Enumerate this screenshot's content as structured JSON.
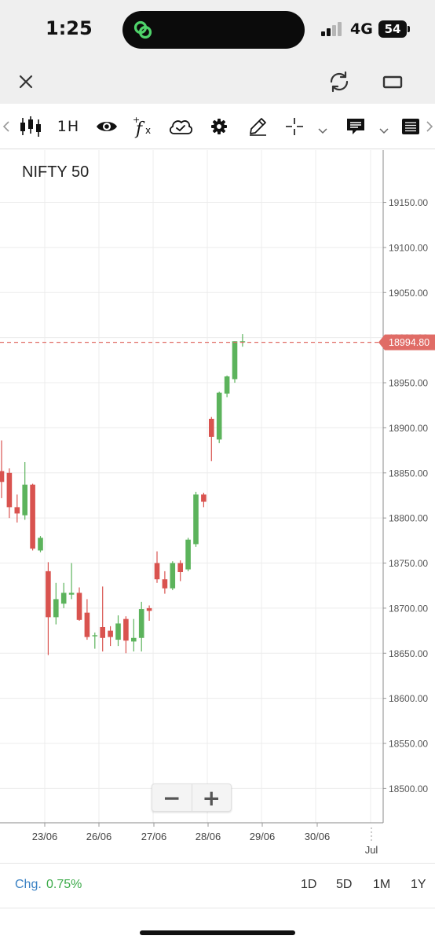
{
  "status_bar": {
    "time": "1:25",
    "network": "4G",
    "battery": "54",
    "icons": [
      "link-icon",
      "signal-icon"
    ]
  },
  "header": {
    "icons": [
      "close-icon",
      "refresh-icon",
      "landscape-icon"
    ]
  },
  "toolbar": {
    "interval_label": "1H",
    "icons": [
      "chevron-left-icon",
      "candlestick-icon",
      "eye-icon",
      "indicator-fx-icon",
      "cloud-check-icon",
      "gear-icon",
      "pencil-icon",
      "crosshair-icon",
      "chevron-down-icon",
      "comment-icon",
      "chevron-down-icon",
      "list-icon",
      "chevron-right-icon"
    ]
  },
  "chart": {
    "symbol": "NIFTY 50",
    "last_price_label": "18994.80",
    "colors": {
      "up": "#5cb35c",
      "down": "#d9534f",
      "price_tag": "#e06c66",
      "grid": "#ececec"
    }
  },
  "chart_data": {
    "type": "candlestick",
    "title": "NIFTY 50",
    "y_ticks": [
      19150,
      19100,
      19050,
      19000,
      18950,
      18900,
      18850,
      18800,
      18750,
      18700,
      18650,
      18600,
      18550,
      18500
    ],
    "y_tick_labels": [
      "19150.00",
      "19100.00",
      "19050.00",
      "19000.00",
      "18950.00",
      "18900.00",
      "18850.00",
      "18800.00",
      "18750.00",
      "18700.00",
      "18650.00",
      "18600.00",
      "18550.00",
      "18500.00"
    ],
    "ylim": [
      18462,
      19208
    ],
    "x_labels": [
      "23/06",
      "26/06",
      "27/06",
      "28/06",
      "29/06",
      "30/06",
      "Jul"
    ],
    "last_price": 18994.8,
    "grid": true,
    "candles": [
      {
        "o": 18852,
        "h": 18886,
        "l": 18822,
        "c": 18840
      },
      {
        "o": 18850,
        "h": 18855,
        "l": 18800,
        "c": 18812
      },
      {
        "o": 18812,
        "h": 18826,
        "l": 18795,
        "c": 18805
      },
      {
        "o": 18803,
        "h": 18862,
        "l": 18798,
        "c": 18837
      },
      {
        "o": 18837,
        "h": 18838,
        "l": 18764,
        "c": 18766
      },
      {
        "o": 18764,
        "h": 18780,
        "l": 18762,
        "c": 18778
      },
      {
        "o": 18741,
        "h": 18751,
        "l": 18648,
        "c": 18690
      },
      {
        "o": 18690,
        "h": 18728,
        "l": 18682,
        "c": 18710
      },
      {
        "o": 18705,
        "h": 18728,
        "l": 18700,
        "c": 18717
      },
      {
        "o": 18715,
        "h": 18750,
        "l": 18710,
        "c": 18717
      },
      {
        "o": 18717,
        "h": 18723,
        "l": 18686,
        "c": 18687
      },
      {
        "o": 18695,
        "h": 18710,
        "l": 18665,
        "c": 18668
      },
      {
        "o": 18670,
        "h": 18673,
        "l": 18655,
        "c": 18670
      },
      {
        "o": 18679,
        "h": 18724,
        "l": 18652,
        "c": 18667
      },
      {
        "o": 18675,
        "h": 18680,
        "l": 18658,
        "c": 18668
      },
      {
        "o": 18665,
        "h": 18692,
        "l": 18658,
        "c": 18683
      },
      {
        "o": 18688,
        "h": 18691,
        "l": 18650,
        "c": 18664
      },
      {
        "o": 18663,
        "h": 18688,
        "l": 18652,
        "c": 18667
      },
      {
        "o": 18667,
        "h": 18707,
        "l": 18652,
        "c": 18699
      },
      {
        "o": 18700,
        "h": 18703,
        "l": 18686,
        "c": 18697
      },
      {
        "o": 18750,
        "h": 18763,
        "l": 18728,
        "c": 18732
      },
      {
        "o": 18732,
        "h": 18741,
        "l": 18716,
        "c": 18722
      },
      {
        "o": 18722,
        "h": 18752,
        "l": 18720,
        "c": 18750
      },
      {
        "o": 18750,
        "h": 18753,
        "l": 18730,
        "c": 18740
      },
      {
        "o": 18743,
        "h": 18778,
        "l": 18741,
        "c": 18776
      },
      {
        "o": 18771,
        "h": 18829,
        "l": 18768,
        "c": 18826
      },
      {
        "o": 18826,
        "h": 18828,
        "l": 18812,
        "c": 18818
      },
      {
        "o": 18910,
        "h": 18912,
        "l": 18863,
        "c": 18890
      },
      {
        "o": 18887,
        "h": 18940,
        "l": 18883,
        "c": 18939
      },
      {
        "o": 18938,
        "h": 18958,
        "l": 18934,
        "c": 18957
      },
      {
        "o": 18954,
        "h": 18996,
        "l": 18950,
        "c": 18996
      },
      {
        "o": 18995,
        "h": 19004,
        "l": 18990,
        "c": 18996
      }
    ]
  },
  "zoom": {
    "minus": "−",
    "plus": "+"
  },
  "footer": {
    "change_label": "Chg.",
    "change_value": "0.75%",
    "ranges": [
      "1D",
      "5D",
      "1M",
      "1Y"
    ]
  }
}
